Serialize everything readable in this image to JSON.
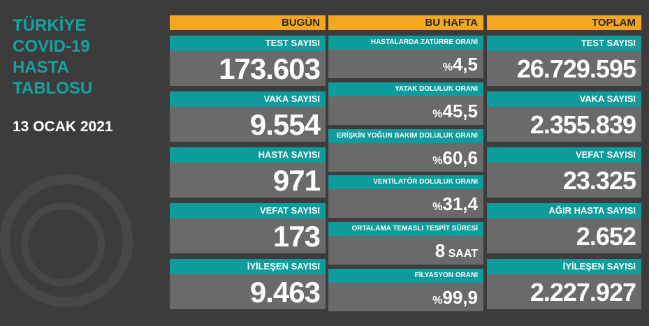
{
  "title": [
    "TÜRKİYE",
    "COVID-19",
    "HASTA",
    "TABLOSU"
  ],
  "date": "13 OCAK 2021",
  "today": {
    "header": "BUGÜN",
    "items": [
      {
        "label": "TEST SAYISI",
        "value": "173.603"
      },
      {
        "label": "VAKA SAYISI",
        "value": "9.554"
      },
      {
        "label": "HASTA SAYISI",
        "value": "971"
      },
      {
        "label": "VEFAT SAYISI",
        "value": "173"
      },
      {
        "label": "İYİLEŞEN SAYISI",
        "value": "9.463"
      }
    ]
  },
  "week": {
    "header": "BU HAFTA",
    "items": [
      {
        "label": "HASTALARDA ZATÜRRE ORANI",
        "prefix": "%",
        "value": "4,5",
        "suffix": ""
      },
      {
        "label": "YATAK DOLULUK ORANI",
        "prefix": "%",
        "value": "45,5",
        "suffix": ""
      },
      {
        "label": "ERİŞKİN YOĞUN BAKIM DOLULUK ORANI",
        "prefix": "%",
        "value": "60,6",
        "suffix": ""
      },
      {
        "label": "VENTİLATÖR DOLULUK ORANI",
        "prefix": "%",
        "value": "31,4",
        "suffix": ""
      },
      {
        "label": "ORTALAMA TEMASLI TESPİT SÜRESİ",
        "prefix": "",
        "value": "8",
        "suffix": " SAAT"
      },
      {
        "label": "FİLYASYON ORANI",
        "prefix": "%",
        "value": "99,9",
        "suffix": ""
      }
    ]
  },
  "total": {
    "header": "TOPLAM",
    "items": [
      {
        "label": "TEST SAYISI",
        "value": "26.729.595"
      },
      {
        "label": "VAKA SAYISI",
        "value": "2.355.839"
      },
      {
        "label": "VEFAT SAYISI",
        "value": "23.325"
      },
      {
        "label": "AĞIR HASTA SAYISI",
        "value": "2.652"
      },
      {
        "label": "İYİLEŞEN SAYISI",
        "value": "2.227.927"
      }
    ]
  },
  "colors": {
    "teal": "#0e9b9b",
    "yellow": "#f5a623",
    "panel": "#6a6a6a",
    "background": "#3c3c3c"
  }
}
